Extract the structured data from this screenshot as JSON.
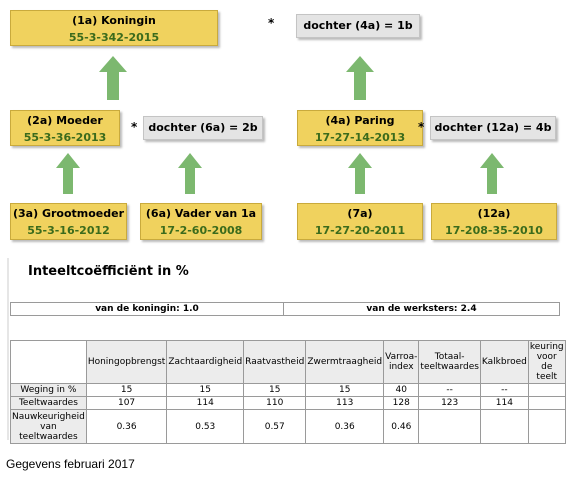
{
  "pedigree": {
    "boxes": [
      {
        "label": "(1a) Koningin",
        "code": "55-3-342-2015"
      },
      {
        "label": "(2a) Moeder",
        "code": "55-3-36-2013"
      },
      {
        "label": "(4a) Paring",
        "code": "17-27-14-2013"
      },
      {
        "label": "(3a) Grootmoeder",
        "code": "55-3-16-2012"
      },
      {
        "label": "(6a) Vader van 1a",
        "code": "17-2-60-2008"
      },
      {
        "label": "(7a)",
        "code": "17-27-20-2011"
      },
      {
        "label": "(12a)",
        "code": "17-208-35-2010"
      }
    ],
    "daughters": [
      {
        "operator": "*",
        "label": "dochter (4a) = 1b"
      },
      {
        "operator": "*",
        "label": "dochter (6a) = 2b"
      },
      {
        "operator": "*",
        "label": "dochter (12a) = 4b"
      }
    ]
  },
  "inbreeding": {
    "title": "Inteeltcoëfficiënt in %",
    "queen": "van de koningin: 1.0",
    "workers": "van de werksters: 2.4"
  },
  "table": {
    "header": [
      "Honingopbrengst",
      "Zachtaardigheid",
      "Raatvastheid",
      "Zwermtraagheid",
      "Varroa-index",
      "Totaal-teeltwaardes",
      "Kalkbroed",
      "keuring voor de teelt"
    ],
    "rows": [
      {
        "label": "Weging in %",
        "cells": [
          "15",
          "15",
          "15",
          "15",
          "40",
          "--",
          "--"
        ]
      },
      {
        "label": "Teeltwaardes",
        "cells": [
          "107",
          "114",
          "110",
          "113",
          "128",
          "123",
          "114"
        ]
      },
      {
        "label": "Nauwkeurigheid van teeltwaardes",
        "cells": [
          "0.36",
          "0.53",
          "0.57",
          "0.36",
          "0.46"
        ]
      }
    ]
  },
  "footer": "Gegevens februari 2017"
}
